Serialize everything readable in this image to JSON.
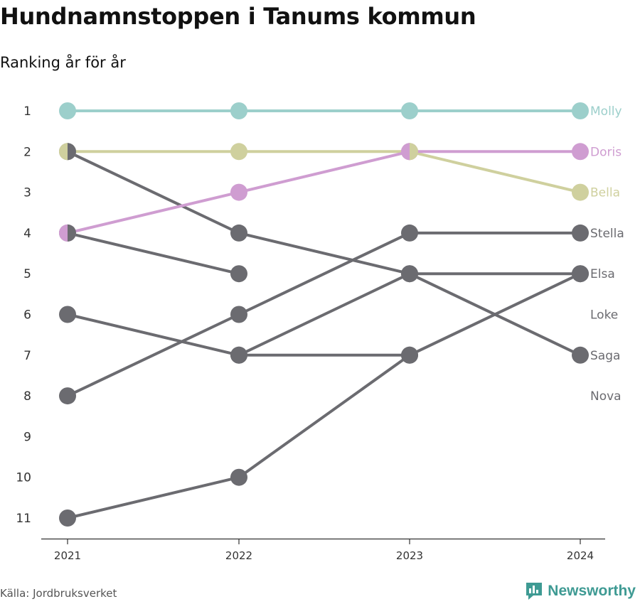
{
  "header": {
    "title": "Hundnamnstoppen i Tanums kommun",
    "subtitle": "Ranking år för år"
  },
  "footer": {
    "source": "Källa: Jordbruksverket",
    "brand": "Newsworthy"
  },
  "colors": {
    "Molly": "#9ccfcb",
    "Doris": "#cf9dd1",
    "Bella": "#cfd09e",
    "other": "#6b6b70"
  },
  "chart_data": {
    "type": "line",
    "title": "Hundnamnstoppen i Tanums kommun",
    "subtitle": "Ranking år för år",
    "x": [
      "2021",
      "2022",
      "2023",
      "2024"
    ],
    "y_ticks": [
      1,
      2,
      3,
      4,
      5,
      6,
      7,
      8,
      9,
      10,
      11
    ],
    "ylim": [
      11,
      1
    ],
    "y_reversed": true,
    "grid": false,
    "series": [
      {
        "name": "Molly",
        "values": [
          1,
          1,
          1,
          1
        ],
        "highlight": true
      },
      {
        "name": "Doris",
        "values": [
          4,
          3,
          2,
          2
        ],
        "highlight": true
      },
      {
        "name": "Bella",
        "values": [
          2,
          2,
          2,
          3
        ],
        "highlight": true
      },
      {
        "name": "Stella",
        "values": [
          8,
          6,
          4,
          4
        ],
        "highlight": false
      },
      {
        "name": "Elsa",
        "values": [
          11,
          10,
          7,
          5
        ],
        "highlight": false
      },
      {
        "name": "Loke",
        "values": [
          4,
          5,
          null,
          null
        ],
        "highlight": false
      },
      {
        "name": "Saga",
        "values": [
          2,
          4,
          5,
          7
        ],
        "highlight": false
      },
      {
        "name": "Nova",
        "values": [
          6,
          7,
          7,
          null
        ],
        "highlight": false
      },
      {
        "name": "",
        "values": [
          null,
          7,
          5,
          5
        ],
        "highlight": false
      }
    ],
    "end_labels": [
      {
        "name": "Molly",
        "rank": 1,
        "color_key": "Molly"
      },
      {
        "name": "Doris",
        "rank": 2,
        "color_key": "Doris"
      },
      {
        "name": "Bella",
        "rank": 3,
        "color_key": "Bella"
      },
      {
        "name": "Stella",
        "rank": 4,
        "color_key": "other"
      },
      {
        "name": "Elsa",
        "rank": 5,
        "color_key": "other"
      },
      {
        "name": "Loke",
        "rank": 6,
        "color_key": "other"
      },
      {
        "name": "Saga",
        "rank": 7,
        "color_key": "other"
      },
      {
        "name": "Nova",
        "rank": 8,
        "color_key": "other"
      }
    ]
  }
}
